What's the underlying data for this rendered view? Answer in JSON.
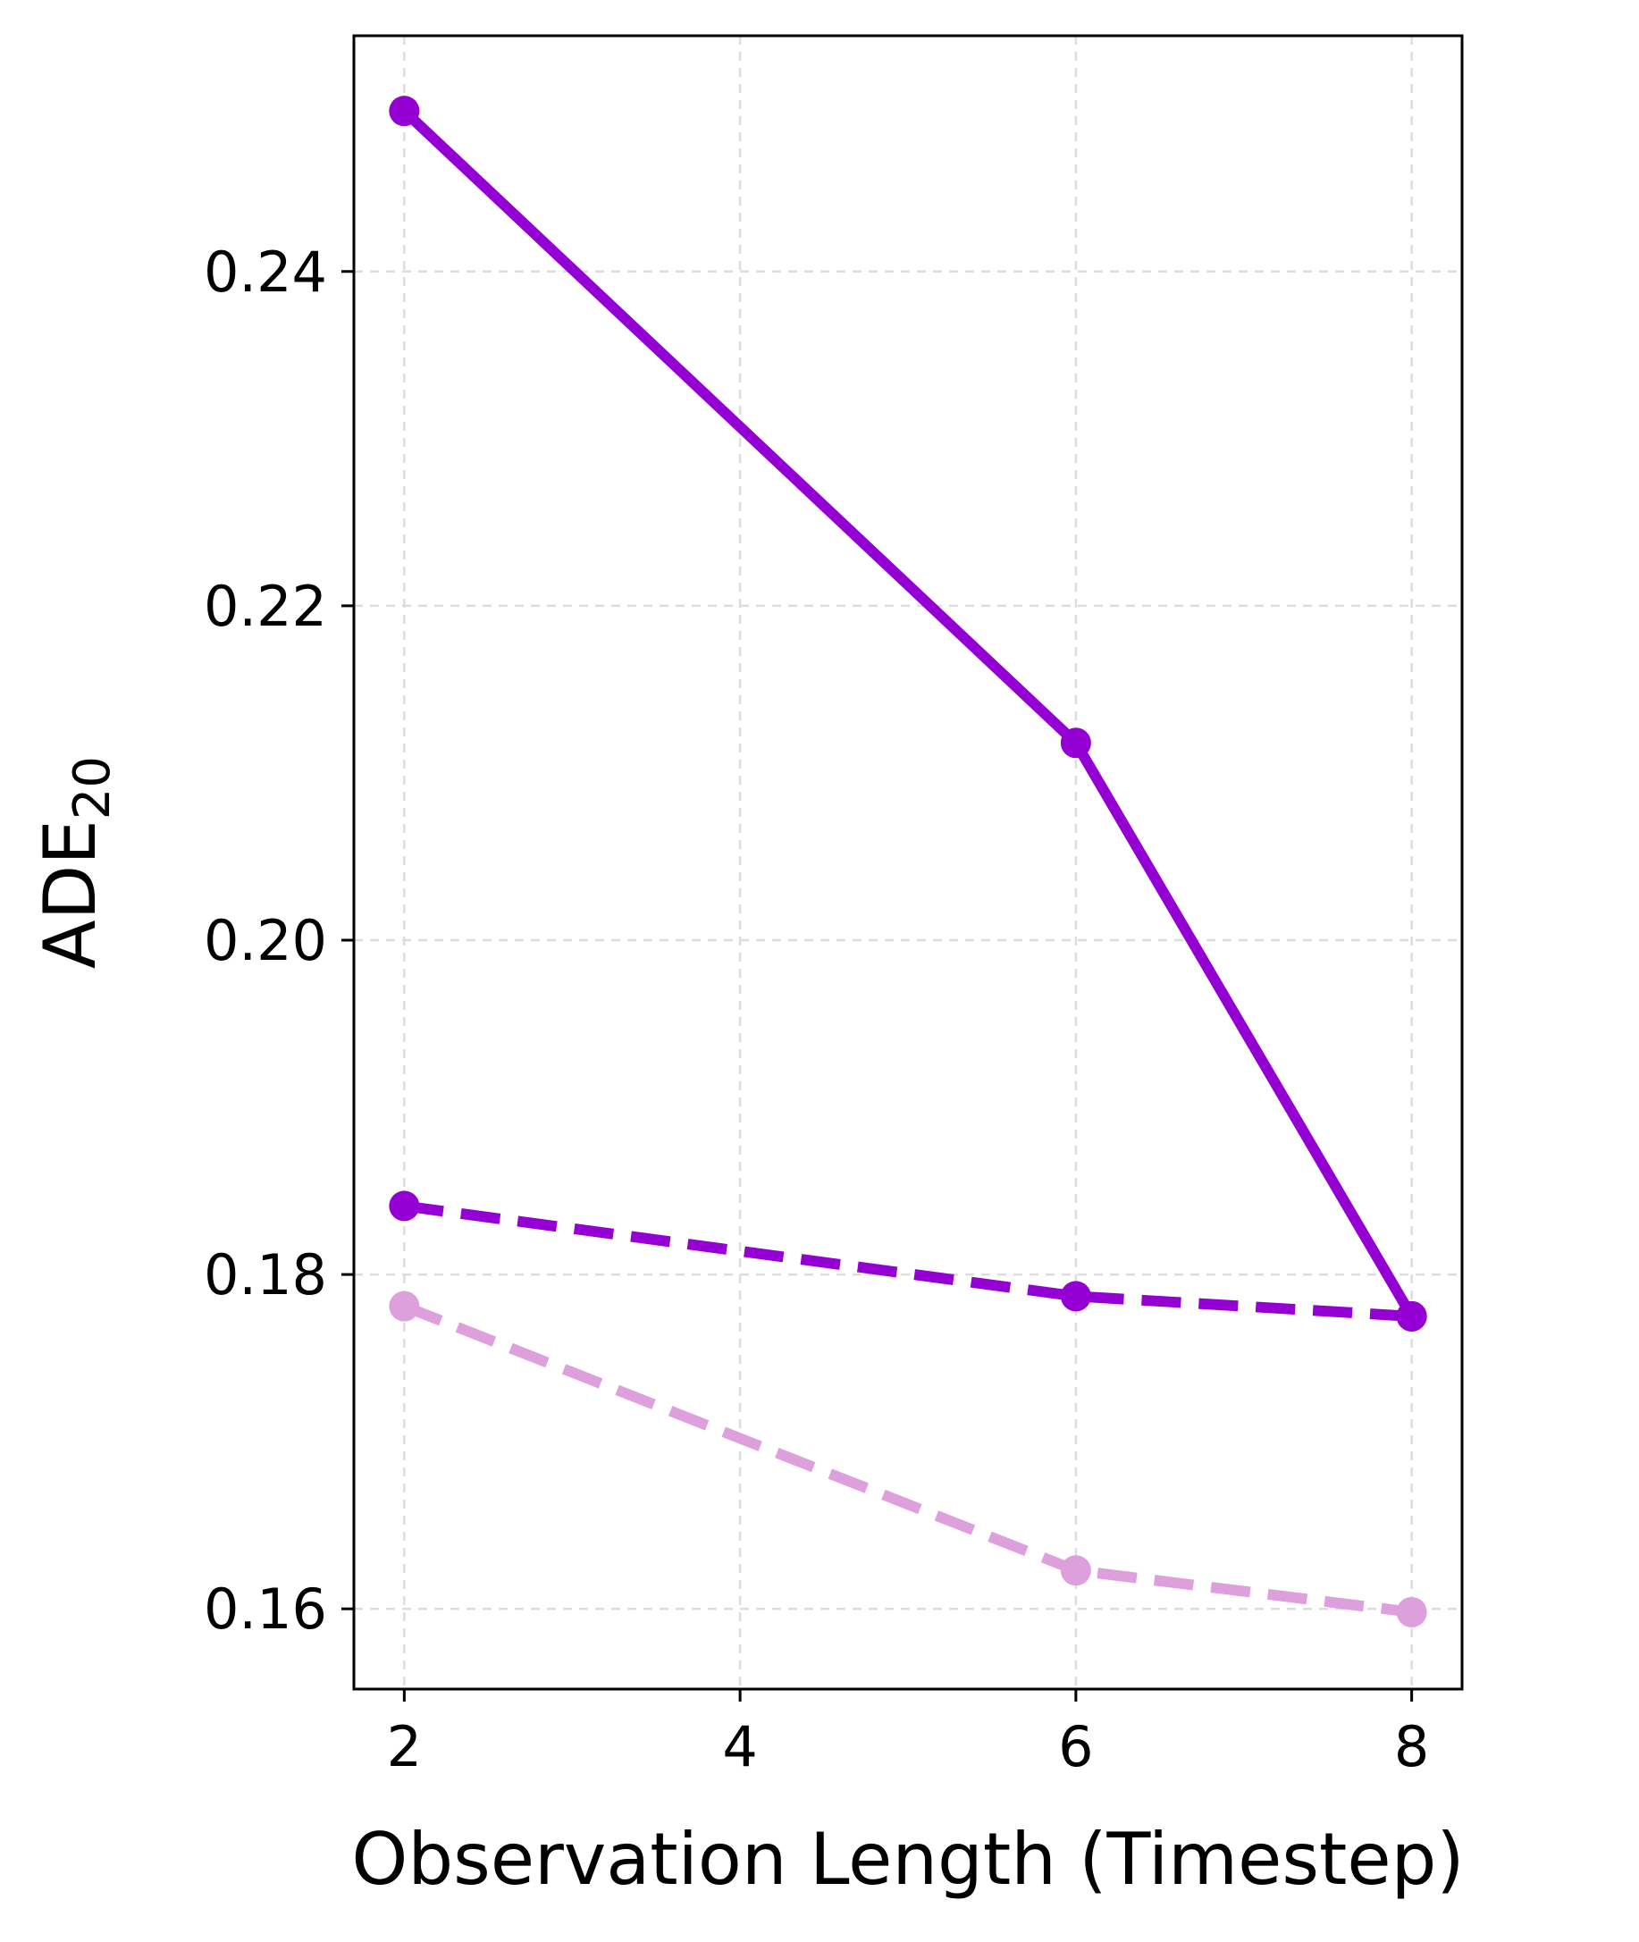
{
  "chart_data": {
    "type": "line",
    "title": "",
    "xlabel": "Observation Length (Timestep)",
    "ylabel_main": "ADE",
    "ylabel_sub": "20",
    "x": [
      2,
      6,
      8
    ],
    "xticks": [
      "2",
      "4",
      "6",
      "8"
    ],
    "xtick_values": [
      2,
      4,
      6,
      8
    ],
    "yticks": [
      "0.16",
      "0.18",
      "0.20",
      "0.22",
      "0.24"
    ],
    "ytick_values": [
      0.16,
      0.18,
      0.2,
      0.22,
      0.24
    ],
    "xlim": [
      1.7,
      8.3
    ],
    "ylim": [
      0.1552,
      0.2541
    ],
    "grid": true,
    "legend": "none",
    "series": [
      {
        "color": "#9400D3",
        "style": "solid",
        "values": [
          0.2496,
          0.2118,
          0.1775
        ]
      },
      {
        "color": "#9400D3",
        "style": "dashed",
        "values": [
          0.1841,
          0.1787,
          0.1775
        ]
      },
      {
        "color": "#DDA0DD",
        "style": "dashed",
        "values": [
          0.1781,
          0.1623,
          0.1598
        ]
      }
    ]
  }
}
